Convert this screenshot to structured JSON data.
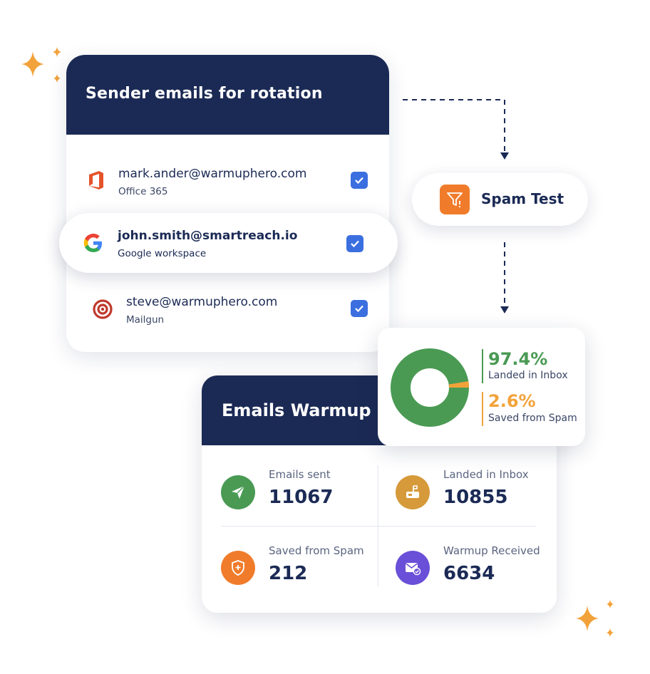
{
  "sender_card": {
    "title": "Sender emails for rotation",
    "rows": [
      {
        "email": "mark.ander@warmuphero.com",
        "provider": "Office 365",
        "icon": "office365-icon",
        "checked": true
      },
      {
        "email": "john.smith@smartreach.io",
        "provider": "Google workspace",
        "icon": "google-icon",
        "checked": true
      },
      {
        "email": "steve@warmuphero.com",
        "provider": "Mailgun",
        "icon": "mailgun-icon",
        "checked": true
      }
    ]
  },
  "spam_test": {
    "label": "Spam Test",
    "icon": "funnel-icon"
  },
  "inbox_stats": {
    "inbox_percent": "97.4%",
    "inbox_label": "Landed in Inbox",
    "spam_percent": "2.6%",
    "spam_label": "Saved from Spam",
    "inbox_fraction": 0.974,
    "colors": {
      "inbox": "#4a9a54",
      "spam": "#f2a23a"
    }
  },
  "warmup_card": {
    "title": "Emails Warmup",
    "stats": [
      {
        "label": "Emails sent",
        "value": "11067",
        "icon": "paper-plane-icon",
        "color": "#4a9a54"
      },
      {
        "label": "Landed in Inbox",
        "value": "10855",
        "icon": "mailbox-icon",
        "color": "#d69a3a"
      },
      {
        "label": "Saved from Spam",
        "value": "212",
        "icon": "shield-icon",
        "color": "#f07c2b"
      },
      {
        "label": "Warmup Received",
        "value": "6634",
        "icon": "envelope-check-icon",
        "color": "#6a4fd8"
      }
    ]
  },
  "colors": {
    "navy": "#1b2a55",
    "accent_orange": "#f2a23a",
    "checkbox_blue": "#3b6fe0"
  }
}
